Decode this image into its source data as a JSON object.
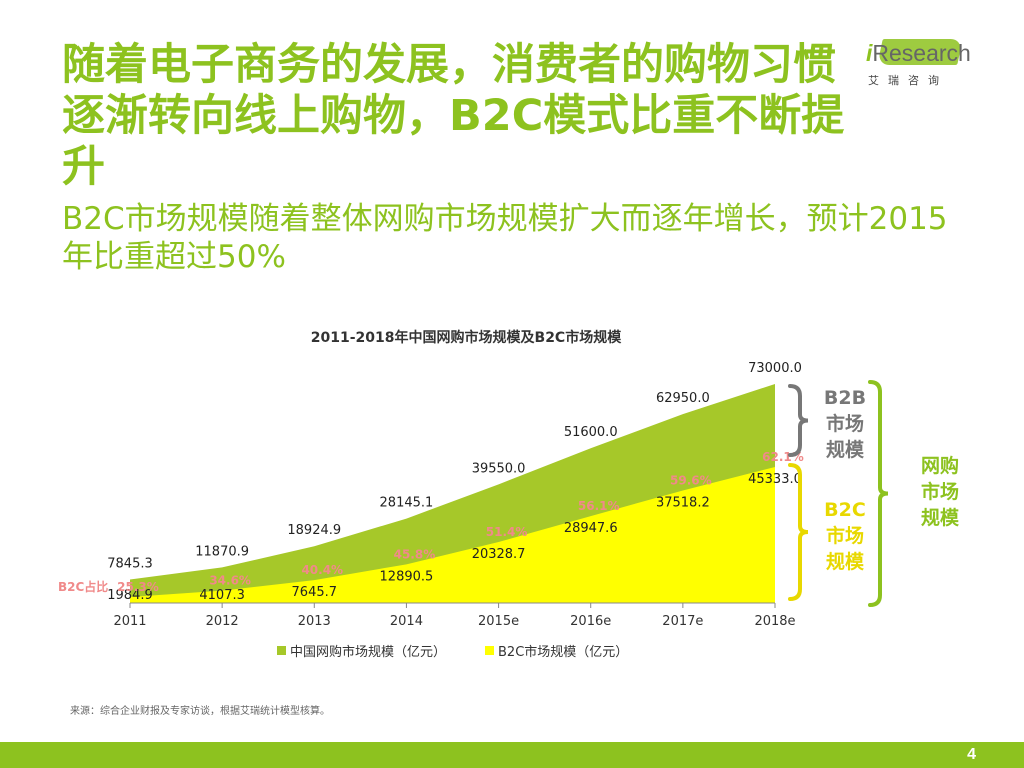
{
  "slide": {
    "title": "随着电子商务的发展，消费者的购物习惯逐渐转向线上购物，B2C模式比重不断提升",
    "subtitle": "B2C市场规模随着整体网购市场规模扩大而逐年增长，预计2015年比重超过50%",
    "logo": {
      "mark": "i",
      "name": "Research",
      "sub": "艾瑞咨询"
    },
    "source": "来源：综合企业财报及专家访谈，根据艾瑞统计模型核算。",
    "page_number": "4"
  },
  "chart_data": {
    "type": "area",
    "title": "2011-2018年中国网购市场规模及B2C市场规模",
    "categories": [
      "2011",
      "2012",
      "2013",
      "2014",
      "2015e",
      "2016e",
      "2017e",
      "2018e"
    ],
    "series": [
      {
        "name": "中国网购市场规模（亿元）",
        "color": "#a6c829",
        "values": [
          7845.3,
          11870.9,
          18924.9,
          28145.1,
          39550.0,
          51600.0,
          62950.0,
          73000.0
        ]
      },
      {
        "name": "B2C市场规模（亿元）",
        "color": "#ffff00",
        "values": [
          1984.9,
          4107.3,
          7645.7,
          12890.5,
          20328.7,
          28947.6,
          37518.2,
          45333.0
        ]
      }
    ],
    "value_labels": {
      "total": [
        "7845.3",
        "11870.9",
        "18924.9",
        "28145.1",
        "39550.0",
        "51600.0",
        "62950.0",
        "73000.0"
      ],
      "b2c": [
        "1984.9",
        "4107.3",
        "7645.7",
        "12890.5",
        "20328.7",
        "28947.6",
        "37518.2",
        "45333.0"
      ]
    },
    "b2c_share": {
      "label": "B2C占比",
      "values": [
        "25.3%",
        "34.6%",
        "40.4%",
        "45.8%",
        "51.4%",
        "56.1%",
        "59.6%",
        "62.1%"
      ],
      "color": "#f08a8a"
    },
    "ylim": [
      0,
      73000
    ],
    "grid": false,
    "legend_position": "bottom",
    "brackets": {
      "b2b": {
        "label": "B2B市场规模",
        "color": "#777777"
      },
      "b2c": {
        "label": "B2C市场规模",
        "color": "#e8d800"
      },
      "total": {
        "label": "网购市场规模",
        "color": "#8dc21f"
      }
    }
  }
}
